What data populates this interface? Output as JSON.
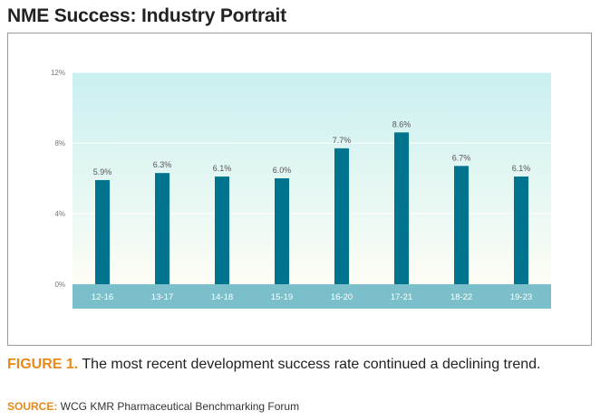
{
  "page": {
    "title": "NME Success: Industry Portrait",
    "caption_label": "FIGURE 1.",
    "caption_text": " The most recent development success rate continued a declining trend.",
    "source_label": "SOURCE:",
    "source_text": " WCG KMR Pharmaceutical Benchmarking Forum"
  },
  "colors": {
    "bar": "#00748f",
    "axis_band": "#7bbfcb",
    "plot_top": "#c9f0f0",
    "plot_bottom": "#fdfdf5",
    "accent": "#e8891a"
  },
  "chart_data": {
    "type": "bar",
    "title": "NME Success: Industry Portrait",
    "xlabel": "",
    "ylabel": "",
    "categories": [
      "12-16",
      "13-17",
      "14-18",
      "15-19",
      "16-20",
      "17-21",
      "18-22",
      "19-23"
    ],
    "values": [
      5.9,
      6.3,
      6.1,
      6.0,
      7.7,
      8.6,
      6.7,
      6.1
    ],
    "data_labels": [
      "5.9%",
      "6.3%",
      "6.1%",
      "6.0%",
      "7.7%",
      "8.6%",
      "6.7%",
      "6.1%"
    ],
    "ylim": [
      0,
      12
    ],
    "yticks": [
      0,
      4,
      8,
      12
    ],
    "ytick_labels": [
      "0%",
      "4%",
      "8%",
      "12%"
    ],
    "grid": true,
    "legend": "none"
  }
}
